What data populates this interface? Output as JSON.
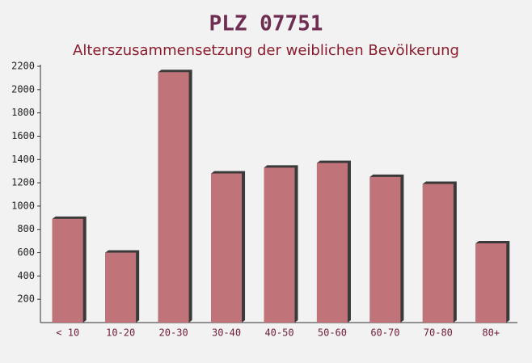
{
  "chart_data": {
    "type": "bar",
    "title": "PLZ 07751",
    "subtitle": "Alterszusammensetzung der weiblichen Bevölkerung",
    "categories": [
      "< 10",
      "10-20",
      "20-30",
      "30-40",
      "40-50",
      "50-60",
      "60-70",
      "70-80",
      "80+"
    ],
    "values": [
      890,
      600,
      2150,
      1280,
      1330,
      1370,
      1250,
      1190,
      680
    ],
    "color": "#c07378",
    "ylim": [
      0,
      2200
    ],
    "yticks": [
      200,
      400,
      600,
      800,
      1000,
      1200,
      1400,
      1600,
      1800,
      2000,
      2200
    ]
  }
}
